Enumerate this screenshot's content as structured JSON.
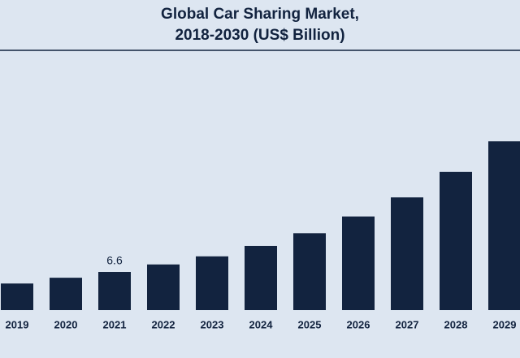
{
  "chart_data": {
    "type": "bar",
    "title": [
      "Global Car Sharing Market,",
      "2018-2030 (US$ Billion)"
    ],
    "categories": [
      "2019",
      "2020",
      "2021",
      "2022",
      "2023",
      "2024",
      "2025",
      "2026",
      "2027",
      "2028",
      "2029"
    ],
    "values": [
      4.6,
      5.6,
      6.6,
      7.9,
      9.3,
      11.1,
      13.3,
      16.2,
      19.5,
      23.9,
      29.2
    ],
    "value_labels": [
      null,
      null,
      "6.6",
      null,
      null,
      null,
      null,
      null,
      null,
      null,
      null
    ],
    "color": "#12233f"
  }
}
